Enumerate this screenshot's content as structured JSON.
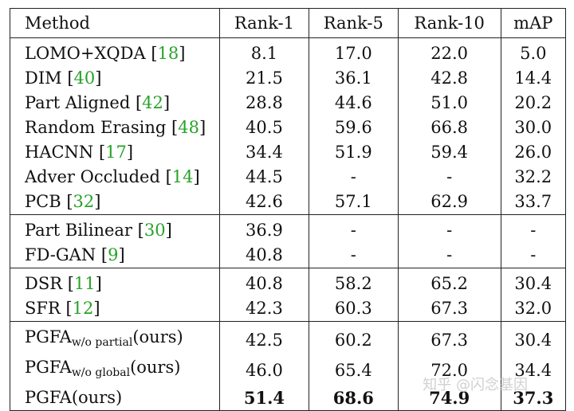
{
  "columns": [
    "Method",
    "Rank-1",
    "Rank-5",
    "Rank-10",
    "mAP"
  ],
  "rows": [
    {
      "name": "LOMO+XQDA",
      "ref": "18",
      "sub": "",
      "suffix": "",
      "r1": "8.1",
      "r5": "17.0",
      "r10": "22.0",
      "map": "5.0",
      "bold": false
    },
    {
      "name": "DIM",
      "ref": "40",
      "sub": "",
      "suffix": "",
      "r1": "21.5",
      "r5": "36.1",
      "r10": "42.8",
      "map": "14.4",
      "bold": false
    },
    {
      "name": "Part Aligned",
      "ref": "42",
      "sub": "",
      "suffix": "",
      "r1": "28.8",
      "r5": "44.6",
      "r10": "51.0",
      "map": "20.2",
      "bold": false
    },
    {
      "name": "Random Erasing",
      "ref": "48",
      "sub": "",
      "suffix": "",
      "r1": "40.5",
      "r5": "59.6",
      "r10": "66.8",
      "map": "30.0",
      "bold": false
    },
    {
      "name": "HACNN",
      "ref": "17",
      "sub": "",
      "suffix": "",
      "r1": "34.4",
      "r5": "51.9",
      "r10": "59.4",
      "map": "26.0",
      "bold": false
    },
    {
      "name": "Adver Occluded",
      "ref": "14",
      "sub": "",
      "suffix": "",
      "r1": "44.5",
      "r5": "-",
      "r10": "-",
      "map": "32.2",
      "bold": false
    },
    {
      "name": "PCB",
      "ref": "32",
      "sub": "",
      "suffix": "",
      "r1": "42.6",
      "r5": "57.1",
      "r10": "62.9",
      "map": "33.7",
      "bold": false
    },
    {
      "name": "Part Bilinear",
      "ref": "30",
      "sub": "",
      "suffix": "",
      "r1": "36.9",
      "r5": "-",
      "r10": "-",
      "map": "-",
      "bold": false
    },
    {
      "name": "FD-GAN",
      "ref": "9",
      "sub": "",
      "suffix": "",
      "r1": "40.8",
      "r5": "-",
      "r10": "-",
      "map": "-",
      "bold": false
    },
    {
      "name": "DSR",
      "ref": "11",
      "sub": "",
      "suffix": "",
      "r1": "40.8",
      "r5": "58.2",
      "r10": "65.2",
      "map": "30.4",
      "bold": false
    },
    {
      "name": "SFR",
      "ref": "12",
      "sub": "",
      "suffix": "",
      "r1": "42.3",
      "r5": "60.3",
      "r10": "67.3",
      "map": "32.0",
      "bold": false
    },
    {
      "name": "PGFA",
      "ref": "",
      "sub": "w/o partial",
      "suffix": "(ours)",
      "r1": "42.5",
      "r5": "60.2",
      "r10": "67.3",
      "map": "30.4",
      "bold": false
    },
    {
      "name": "PGFA",
      "ref": "",
      "sub": "w/o global",
      "suffix": "(ours)",
      "r1": "46.0",
      "r5": "65.4",
      "r10": "72.0",
      "map": "34.4",
      "bold": false
    },
    {
      "name": "PGFA",
      "ref": "",
      "sub": "",
      "suffix": "(ours)",
      "r1": "51.4",
      "r5": "68.6",
      "r10": "74.9",
      "map": "37.3",
      "bold": true
    }
  ],
  "group_ends": [
    6,
    8,
    10
  ],
  "watermark": "知乎 @闪念基因"
}
